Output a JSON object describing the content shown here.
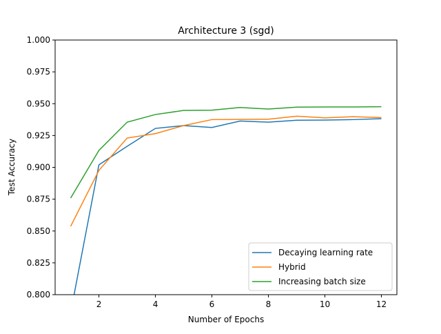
{
  "chart_data": {
    "type": "line",
    "title": "Architecture 3 (sgd)",
    "xlabel": "Number of Epochs",
    "ylabel": "Test Accuracy",
    "xlim": [
      0.45,
      12.55
    ],
    "ylim": [
      0.8,
      1.0
    ],
    "xticks": [
      2,
      4,
      6,
      8,
      10,
      12
    ],
    "yticks": [
      0.8,
      0.825,
      0.85,
      0.875,
      0.9,
      0.925,
      0.95,
      0.975,
      1.0
    ],
    "ytick_labels": [
      "0.800",
      "0.825",
      "0.850",
      "0.875",
      "0.900",
      "0.925",
      "0.950",
      "0.975",
      "1.000"
    ],
    "grid": false,
    "legend": "lower right",
    "x": [
      1,
      2,
      3,
      4,
      5,
      6,
      7,
      8,
      9,
      10,
      11,
      12
    ],
    "series": [
      {
        "name": "Decaying learning rate",
        "color": "#1f77b4",
        "values": [
          0.786,
          0.902,
          0.9165,
          0.9306,
          0.9328,
          0.9313,
          0.9364,
          0.9355,
          0.937,
          0.9371,
          0.9375,
          0.9382
        ]
      },
      {
        "name": "Hybrid",
        "color": "#ff7f0e",
        "values": [
          0.8537,
          0.8976,
          0.923,
          0.9265,
          0.9328,
          0.9375,
          0.9377,
          0.9378,
          0.9402,
          0.9389,
          0.9398,
          0.9391
        ]
      },
      {
        "name": "Increasing batch size",
        "color": "#2ca02c",
        "values": [
          0.8759,
          0.9133,
          0.9355,
          0.9415,
          0.9447,
          0.9449,
          0.947,
          0.9458,
          0.9473,
          0.9474,
          0.9474,
          0.9476
        ]
      }
    ]
  }
}
